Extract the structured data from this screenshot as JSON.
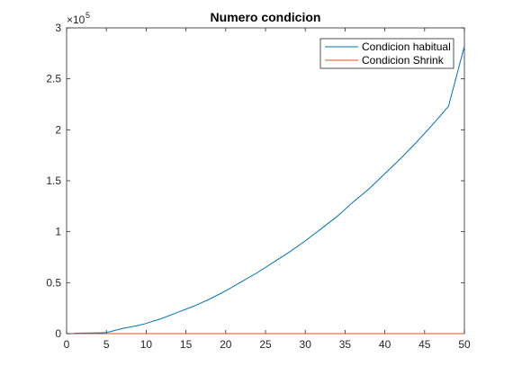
{
  "chart_data": {
    "type": "line",
    "title": "Numero condicion",
    "xlabel": "",
    "ylabel": "",
    "xlim": [
      0,
      50
    ],
    "ylim": [
      0,
      3
    ],
    "y_scale_factor": {
      "base": "×10",
      "exponent": "5"
    },
    "x_ticks": [
      0,
      5,
      10,
      15,
      20,
      25,
      30,
      35,
      40,
      45,
      50
    ],
    "y_ticks": [
      0,
      0.5,
      1,
      1.5,
      2,
      2.5,
      3
    ],
    "grid": false,
    "legend_placement": "top-right",
    "series": [
      {
        "name": "Condicion habitual",
        "color": "#0072BD",
        "x": [
          1,
          2,
          3,
          4,
          5,
          6,
          7,
          8,
          9,
          10,
          12,
          14,
          16,
          18,
          20,
          22,
          24,
          26,
          28,
          30,
          32,
          34,
          36,
          38,
          40,
          42,
          44,
          46,
          48,
          50
        ],
        "y": [
          0.004,
          0.005,
          0.006,
          0.008,
          0.01,
          0.03,
          0.05,
          0.065,
          0.08,
          0.1,
          0.15,
          0.21,
          0.27,
          0.34,
          0.42,
          0.51,
          0.6,
          0.7,
          0.8,
          0.91,
          1.03,
          1.15,
          1.29,
          1.42,
          1.57,
          1.72,
          1.88,
          2.05,
          2.23,
          2.82
        ]
      },
      {
        "name": "Condicion Shrink",
        "color": "#D95319",
        "x": [
          1,
          10,
          20,
          30,
          40,
          50
        ],
        "y": [
          0.0001,
          0.0001,
          0.0001,
          0.0001,
          0.0001,
          0.0001
        ]
      }
    ]
  }
}
